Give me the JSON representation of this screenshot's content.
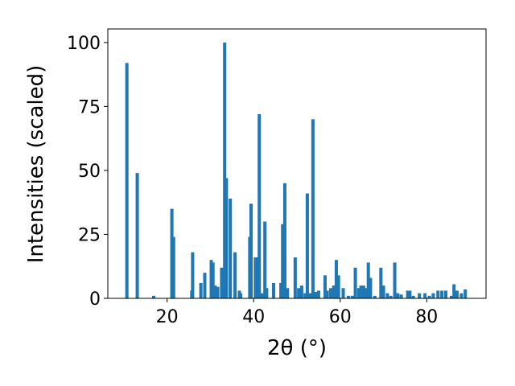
{
  "chart_data": {
    "type": "bar",
    "xlabel": "2θ (°)",
    "ylabel": "Intensities (scaled)",
    "x": [
      10.7,
      13.1,
      16.9,
      21.1,
      21.5,
      25.7,
      25.9,
      27.8,
      28.7,
      30.2,
      30.6,
      31.1,
      31.7,
      32.6,
      33.3,
      33.7,
      34.6,
      35.7,
      36.7,
      37.0,
      39.1,
      39.4,
      40.4,
      40.9,
      41.3,
      41.9,
      42.6,
      43.0,
      44.6,
      46.3,
      46.7,
      47.2,
      47.8,
      49.6,
      50.4,
      51.1,
      51.9,
      52.4,
      53.0,
      53.7,
      54.3,
      55.0,
      56.5,
      57.0,
      57.8,
      58.5,
      59.1,
      59.6,
      60.7,
      61.9,
      62.8,
      63.5,
      64.3,
      64.8,
      65.4,
      65.9,
      66.5,
      67.0,
      68.0,
      69.4,
      70.0,
      70.9,
      71.7,
      72.6,
      73.3,
      74.1,
      75.6,
      76.1,
      76.9,
      78.3,
      79.6,
      80.6,
      81.5,
      82.6,
      83.5,
      84.4,
      85.7,
      86.3,
      87.0,
      88.0,
      88.9
    ],
    "values": [
      92,
      49,
      1,
      35,
      24,
      3,
      18,
      6,
      10,
      15,
      14,
      5,
      4.5,
      12,
      100,
      47,
      39,
      18,
      3,
      2,
      24,
      37,
      16,
      16,
      72,
      2,
      30,
      4,
      6,
      6,
      29,
      45,
      4,
      16,
      4,
      5,
      2,
      41,
      2,
      70,
      2.5,
      3,
      9,
      3,
      4,
      5,
      15,
      9,
      4,
      1,
      1,
      12,
      4,
      5,
      5,
      4,
      14,
      8,
      1,
      12,
      5,
      2,
      1,
      14,
      2,
      1.5,
      3,
      3,
      1,
      2,
      2,
      1,
      2,
      3,
      3,
      3,
      1,
      5.5,
      3,
      2,
      3.5
    ],
    "color": "#1f77b4",
    "xlim": [
      6.3,
      93.7
    ],
    "ylim": [
      0,
      105.3
    ],
    "xticks": [
      20,
      40,
      60,
      80
    ],
    "yticks": [
      0,
      25,
      50,
      75,
      100
    ]
  }
}
